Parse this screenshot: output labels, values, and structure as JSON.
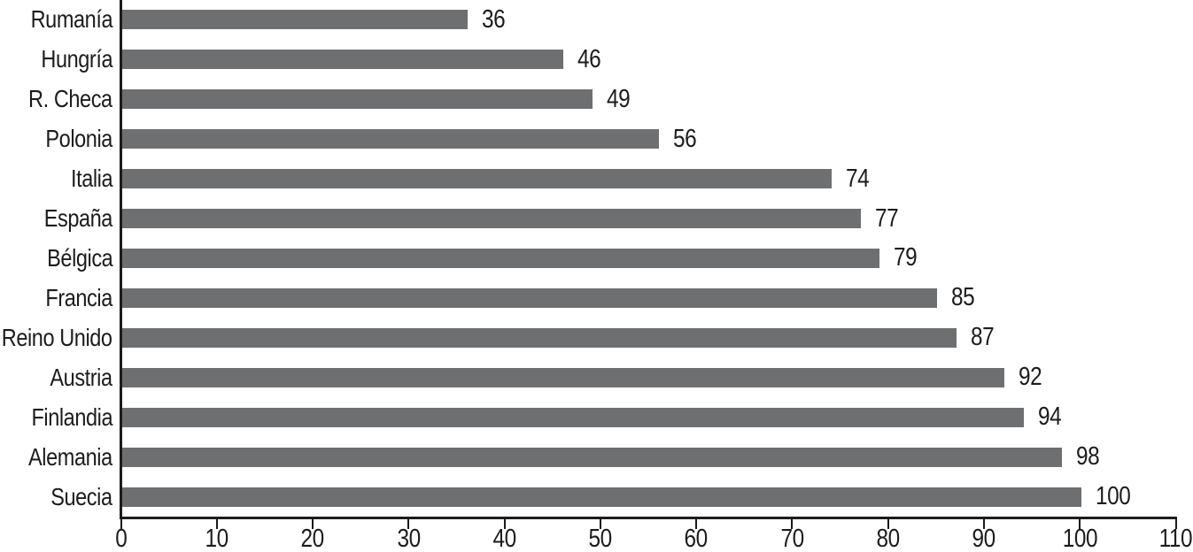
{
  "chart_data": {
    "type": "bar",
    "orientation": "horizontal",
    "title": "",
    "xlabel": "",
    "ylabel": "",
    "categories": [
      "Rumanía",
      "Hungría",
      "R. Checa",
      "Polonia",
      "Italia",
      "España",
      "Bélgica",
      "Francia",
      "Reino Unido",
      "Austria",
      "Finlandia",
      "Alemania",
      "Suecia"
    ],
    "values": [
      36,
      46,
      49,
      56,
      74,
      77,
      79,
      85,
      87,
      92,
      94,
      98,
      100
    ],
    "value_labels": [
      "36",
      "46",
      "49",
      "56",
      "74",
      "77",
      "79",
      "85",
      "87",
      "92",
      "94",
      "98",
      "100"
    ],
    "xlim": [
      0,
      110
    ],
    "x_ticks": [
      0,
      10,
      20,
      30,
      40,
      50,
      60,
      70,
      80,
      90,
      100,
      110
    ],
    "x_tick_labels": [
      "0",
      "10",
      "20",
      "30",
      "40",
      "50",
      "60",
      "70",
      "80",
      "90",
      "100",
      "110"
    ],
    "grid": false,
    "legend": false,
    "value_label_position": "right-of-bar",
    "bar_color": "#6d6f71",
    "axis_color": "#1c1c1c",
    "text_color": "#1c1c1c",
    "background_color": "#ffffff"
  }
}
